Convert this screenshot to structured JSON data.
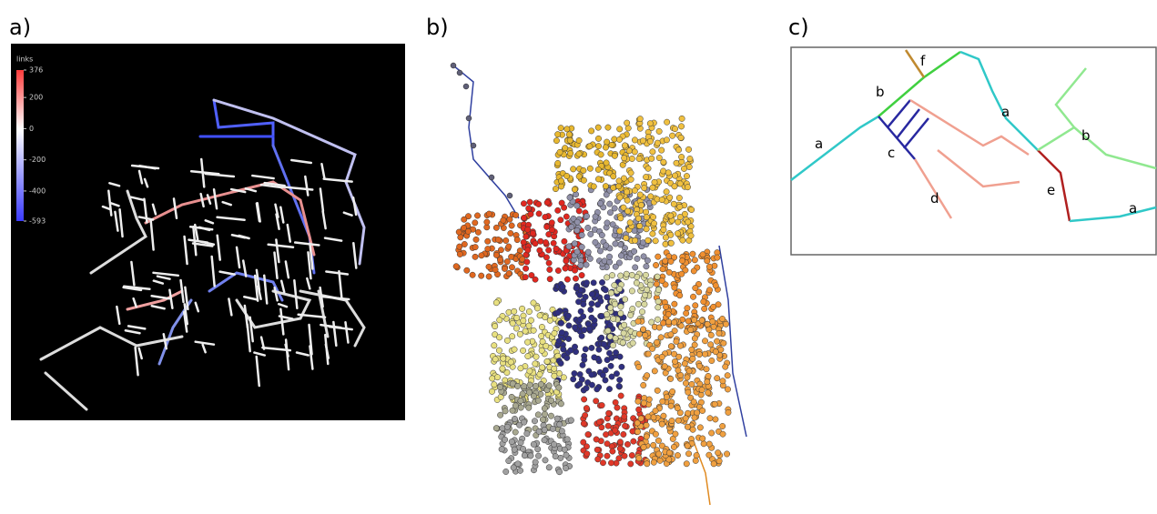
{
  "panels": [
    {
      "label": "a)",
      "colorbar": {
        "title": "links",
        "ticks": [
          376,
          200,
          0,
          -200,
          -400,
          -593
        ]
      }
    },
    {
      "label": "b)"
    },
    {
      "label": "c)",
      "annotations": [
        "f",
        "b",
        "a",
        "a",
        "c",
        "b",
        "e",
        "d",
        "a"
      ]
    }
  ]
}
